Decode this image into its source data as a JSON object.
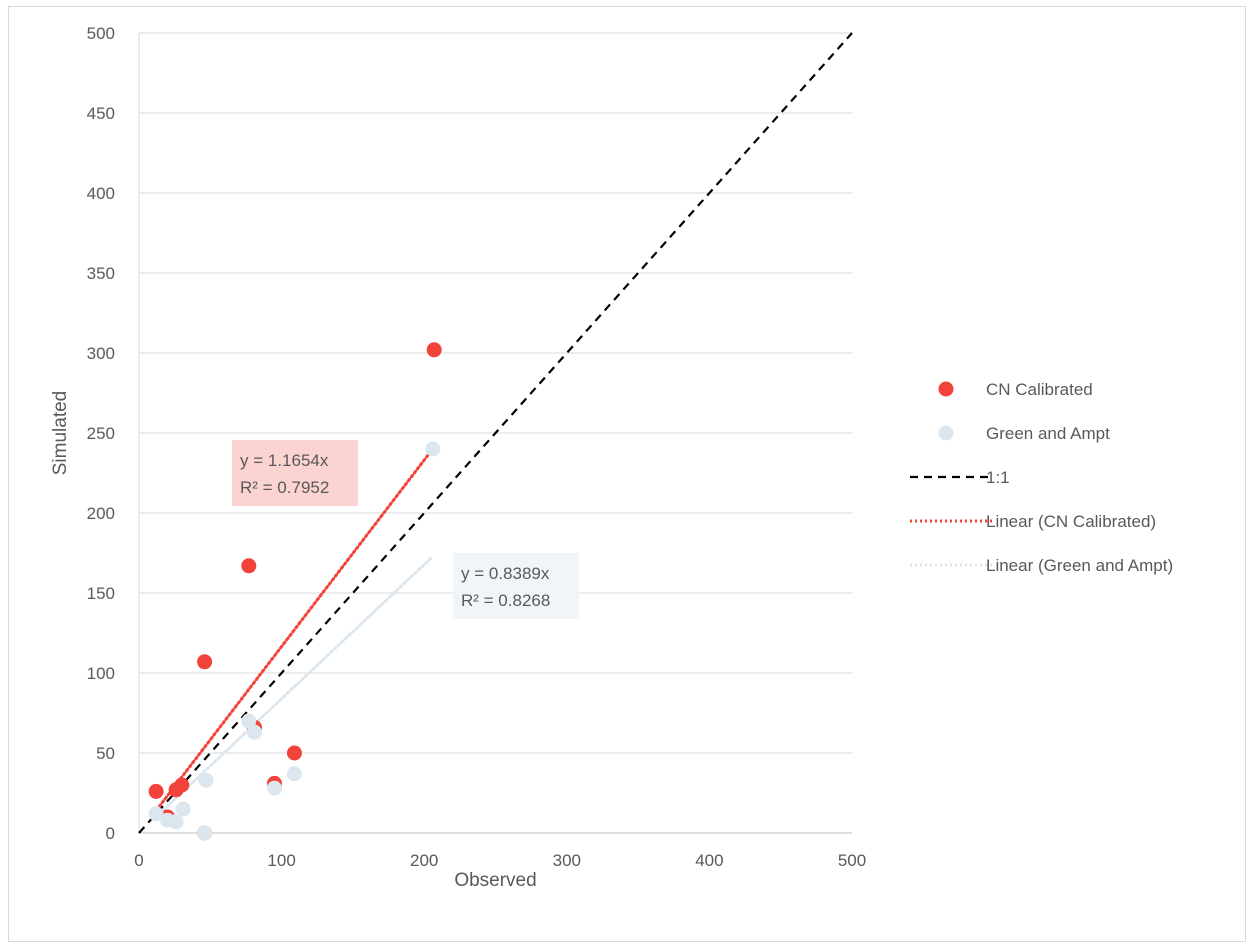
{
  "chart_data": {
    "type": "scatter",
    "xlabel": "Observed",
    "ylabel": "Simulated",
    "xlim": [
      0,
      500
    ],
    "ylim": [
      0,
      500
    ],
    "x_ticks": [
      "0",
      "100",
      "200",
      "300",
      "400",
      "500"
    ],
    "y_ticks": [
      "0",
      "50",
      "100",
      "150",
      "200",
      "250",
      "300",
      "350",
      "400",
      "450",
      "500"
    ],
    "grid": "horizontal",
    "legend_position": "right",
    "series": [
      {
        "name": "CN Calibrated",
        "kind": "points",
        "color": "#f2433a",
        "points": [
          [
            12,
            26
          ],
          [
            20,
            10
          ],
          [
            26,
            27
          ],
          [
            30,
            30
          ],
          [
            46,
            107
          ],
          [
            46,
            0
          ],
          [
            77,
            167
          ],
          [
            81,
            66
          ],
          [
            95,
            31
          ],
          [
            109,
            50
          ],
          [
            207,
            302
          ]
        ]
      },
      {
        "name": "Green and Ampt",
        "kind": "points",
        "color": "#dce6ef",
        "points": [
          [
            12,
            12
          ],
          [
            20,
            8
          ],
          [
            26,
            7
          ],
          [
            31,
            15
          ],
          [
            46,
            0
          ],
          [
            47,
            33
          ],
          [
            77,
            70
          ],
          [
            81,
            63
          ],
          [
            95,
            28
          ],
          [
            109,
            37
          ],
          [
            206,
            240
          ]
        ]
      },
      {
        "name": "1:1",
        "kind": "line",
        "color": "#000000",
        "dash": "dashed",
        "points": [
          [
            0,
            0
          ],
          [
            500,
            500
          ]
        ]
      },
      {
        "name": "Linear (CN Calibrated)",
        "kind": "trendline",
        "color": "#f2433a",
        "dash": "dotted",
        "slope": 1.1654,
        "x_range": [
          12,
          207
        ]
      },
      {
        "name": "Linear (Green and Ampt)",
        "kind": "trendline",
        "color": "#dce6ef",
        "dash": "dotted",
        "slope": 0.8389,
        "x_range": [
          12,
          206
        ]
      }
    ],
    "annotations": [
      {
        "series": "CN Calibrated",
        "lines": [
          "y = 1.1654x",
          "R² = 0.7952"
        ],
        "box_color": "#fbd3d1"
      },
      {
        "series": "Green and Ampt",
        "lines": [
          "y = 0.8389x",
          "R² = 0.8268"
        ],
        "box_color": "#f2f5f8"
      }
    ]
  }
}
